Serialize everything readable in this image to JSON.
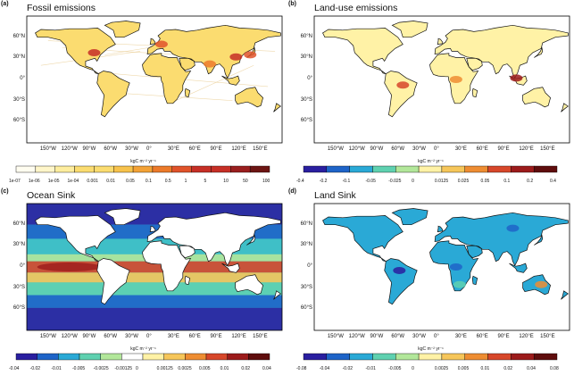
{
  "colors": {
    "seq": [
      "#fffdf0",
      "#fff6c9",
      "#feed9e",
      "#fbdc70",
      "#f7c24c",
      "#f3a236",
      "#ec7a2a",
      "#e0532a",
      "#c62f26",
      "#9a1f1f",
      "#6d1513"
    ],
    "div": [
      "#2a1fa0",
      "#1e64c8",
      "#2aa9d6",
      "#5fd1b0",
      "#b2e79a",
      "#ffffff",
      "#fff2a6",
      "#f6c65a",
      "#ee8d32",
      "#d7472a",
      "#9c1b1b",
      "#5f0d0d"
    ],
    "ocean_bg": "#3fbfc7",
    "land_bg": "#ffffff"
  },
  "latitudes": [
    "60°N",
    "30°N",
    "0°",
    "30°S",
    "60°S"
  ],
  "longitudes": [
    "150°W",
    "120°W",
    "90°W",
    "60°W",
    "30°W",
    "0°",
    "30°E",
    "60°E",
    "90°E",
    "120°E",
    "150°E"
  ],
  "panels": [
    {
      "label": "(a)",
      "title": "Fossil emissions",
      "colorbar_title": "kgC m⁻² yr⁻¹",
      "colorbar_labels": [
        "1e-07",
        "1e-06",
        "1e-05",
        "1e-04",
        "0.001",
        "0.01",
        "0.05",
        "0.1",
        "0.5",
        "1",
        "5",
        "10",
        "50",
        "100"
      ],
      "scale": "seq"
    },
    {
      "label": "(b)",
      "title": "Land-use emissions",
      "colorbar_title": "kgC m⁻² yr⁻¹",
      "colorbar_labels": [
        "-0.4",
        "-0.2",
        "-0.1",
        "-0.05",
        "-0.025",
        "0",
        "0.0125",
        "0.025",
        "0.05",
        "0.1",
        "0.2",
        "0.4"
      ],
      "scale": "div"
    },
    {
      "label": "(c)",
      "title": "Ocean Sink",
      "colorbar_title": "kgC m⁻² yr⁻¹",
      "colorbar_labels": [
        "-0.04",
        "-0.02",
        "-0.01",
        "-0.005",
        "-0.0025",
        "-0.00125",
        "0",
        "0.00125",
        "0.0025",
        "0.005",
        "0.01",
        "0.02",
        "0.04"
      ],
      "scale": "div"
    },
    {
      "label": "(d)",
      "title": "Land Sink",
      "colorbar_title": "kgC m⁻² yr⁻¹",
      "colorbar_labels": [
        "-0.08",
        "-0.04",
        "-0.02",
        "-0.01",
        "-0.005",
        "0",
        "0.0025",
        "0.005",
        "0.01",
        "0.02",
        "0.04",
        "0.08"
      ],
      "scale": "div"
    }
  ]
}
